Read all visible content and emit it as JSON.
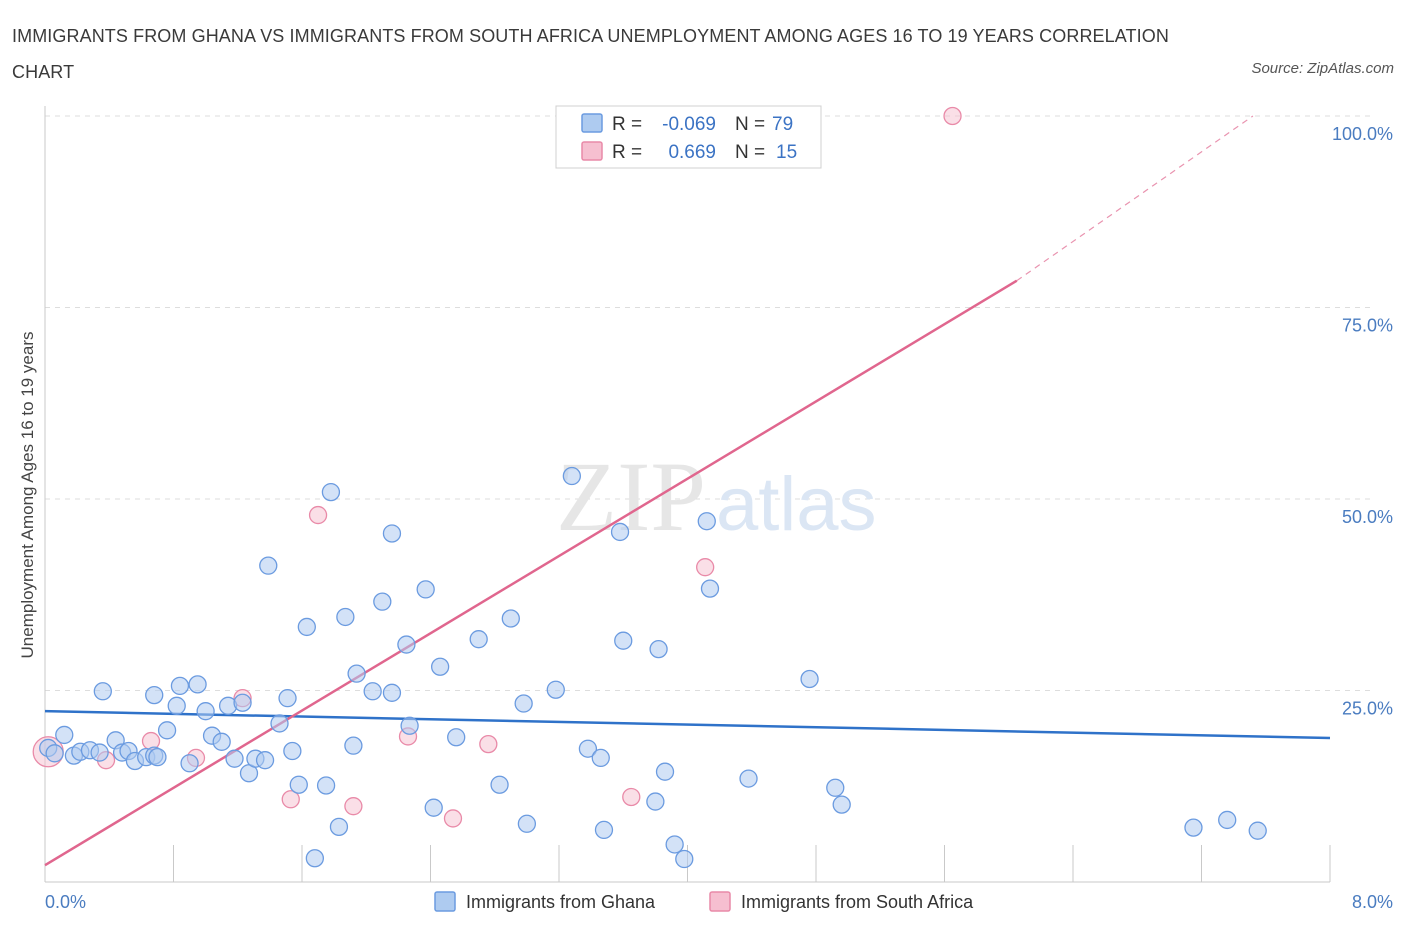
{
  "title": "IMMIGRANTS FROM GHANA VS IMMIGRANTS FROM SOUTH AFRICA UNEMPLOYMENT AMONG AGES 16 TO 19 YEARS CORRELATION CHART",
  "source": "Source: ZipAtlas.com",
  "watermark": {
    "zip": "ZIP",
    "atlas": "atlas"
  },
  "colors": {
    "ghana_fill": "#aecbf0",
    "ghana_stroke": "#6b9be0",
    "ghana_line": "#2f72c9",
    "sa_fill": "#f6bfd0",
    "sa_stroke": "#e98aa8",
    "sa_line": "#e0668e",
    "grid": "#dddddd",
    "axis_text": "#4a7cc0"
  },
  "legend": {
    "rows": [
      {
        "r_label": "R =",
        "r_value": "-0.069",
        "n_label": "N =",
        "n_value": "79"
      },
      {
        "r_label": "R =",
        "r_value": "0.669",
        "n_label": "N =",
        "n_value": "15"
      }
    ]
  },
  "chart_data": {
    "type": "scatter",
    "title": "IMMIGRANTS FROM GHANA VS IMMIGRANTS FROM SOUTH AFRICA UNEMPLOYMENT AMONG AGES 16 TO 19 YEARS CORRELATION CHART",
    "xlabel": "",
    "ylabel": "Unemployment Among Ages 16 to 19 years",
    "xlim": [
      0,
      8
    ],
    "ylim": [
      0,
      100
    ],
    "x_tick_labels": [
      "0.0%",
      "8.0%"
    ],
    "y_ticks": [
      25,
      50,
      75,
      100
    ],
    "y_tick_labels": [
      "25.0%",
      "50.0%",
      "75.0%",
      "100.0%"
    ],
    "legend_position": "top-center",
    "series": [
      {
        "name": "Immigrants from Ghana",
        "R": -0.069,
        "N": 79,
        "trend": {
          "x": [
            0,
            8
          ],
          "y": [
            22.3,
            18.8
          ]
        },
        "points": [
          [
            0.02,
            17.5
          ],
          [
            0.06,
            16.8
          ],
          [
            0.12,
            19.2
          ],
          [
            0.18,
            16.5
          ],
          [
            0.22,
            17.0
          ],
          [
            0.28,
            17.2
          ],
          [
            0.34,
            16.9
          ],
          [
            0.36,
            24.9
          ],
          [
            0.44,
            18.5
          ],
          [
            0.48,
            16.9
          ],
          [
            0.52,
            17.1
          ],
          [
            0.56,
            15.8
          ],
          [
            0.63,
            16.3
          ],
          [
            0.68,
            16.5
          ],
          [
            0.68,
            24.4
          ],
          [
            0.76,
            19.8
          ],
          [
            0.82,
            23.0
          ],
          [
            0.84,
            25.6
          ],
          [
            0.9,
            15.5
          ],
          [
            0.95,
            25.8
          ],
          [
            1.0,
            22.3
          ],
          [
            1.04,
            19.1
          ],
          [
            1.1,
            18.3
          ],
          [
            1.14,
            23.0
          ],
          [
            1.18,
            16.1
          ],
          [
            1.23,
            23.4
          ],
          [
            1.27,
            14.2
          ],
          [
            1.31,
            16.1
          ],
          [
            1.37,
            15.9
          ],
          [
            1.39,
            41.3
          ],
          [
            1.46,
            20.7
          ],
          [
            1.51,
            24.0
          ],
          [
            1.54,
            17.1
          ],
          [
            1.58,
            12.7
          ],
          [
            1.63,
            33.3
          ],
          [
            1.68,
            3.1
          ],
          [
            1.75,
            12.6
          ],
          [
            1.78,
            50.9
          ],
          [
            1.83,
            7.2
          ],
          [
            1.87,
            34.6
          ],
          [
            1.92,
            17.8
          ],
          [
            1.94,
            27.2
          ],
          [
            2.04,
            24.9
          ],
          [
            2.1,
            36.6
          ],
          [
            2.16,
            45.5
          ],
          [
            2.16,
            24.7
          ],
          [
            2.25,
            31.0
          ],
          [
            2.27,
            20.4
          ],
          [
            2.37,
            38.2
          ],
          [
            2.42,
            9.7
          ],
          [
            2.46,
            28.1
          ],
          [
            2.56,
            18.9
          ],
          [
            2.7,
            31.7
          ],
          [
            2.83,
            12.7
          ],
          [
            2.9,
            34.4
          ],
          [
            2.98,
            23.3
          ],
          [
            3.0,
            7.6
          ],
          [
            3.18,
            25.1
          ],
          [
            3.28,
            53.0
          ],
          [
            3.38,
            17.4
          ],
          [
            3.46,
            16.2
          ],
          [
            3.48,
            6.8
          ],
          [
            3.58,
            45.7
          ],
          [
            3.6,
            31.5
          ],
          [
            3.8,
            10.5
          ],
          [
            3.82,
            30.4
          ],
          [
            3.86,
            14.4
          ],
          [
            3.92,
            4.9
          ],
          [
            3.98,
            3.0
          ],
          [
            4.12,
            47.1
          ],
          [
            4.14,
            38.3
          ],
          [
            4.38,
            13.5
          ],
          [
            4.76,
            26.5
          ],
          [
            4.92,
            12.3
          ],
          [
            4.96,
            10.1
          ],
          [
            7.15,
            7.1
          ],
          [
            7.36,
            8.1
          ],
          [
            7.55,
            6.7
          ],
          [
            0.7,
            16.3
          ]
        ]
      },
      {
        "name": "Immigrants from South Africa",
        "R": 0.669,
        "N": 15,
        "trend": {
          "x": [
            0,
            6.05
          ],
          "y": [
            2.2,
            78.5
          ],
          "dashed_to": {
            "x": 7.52,
            "y": 100
          }
        },
        "points": [
          [
            0.02,
            17.0
          ],
          [
            0.38,
            15.9
          ],
          [
            0.66,
            18.4
          ],
          [
            0.94,
            16.2
          ],
          [
            1.23,
            24.0
          ],
          [
            1.53,
            10.8
          ],
          [
            1.7,
            47.9
          ],
          [
            1.92,
            9.9
          ],
          [
            2.26,
            19.0
          ],
          [
            2.54,
            8.3
          ],
          [
            2.76,
            18.0
          ],
          [
            3.65,
            11.1
          ],
          [
            4.0,
            100.0
          ],
          [
            4.11,
            41.1
          ],
          [
            5.65,
            100.0
          ]
        ]
      }
    ]
  },
  "bottom_legend": [
    {
      "label": "Immigrants from Ghana"
    },
    {
      "label": "Immigrants from South Africa"
    }
  ]
}
